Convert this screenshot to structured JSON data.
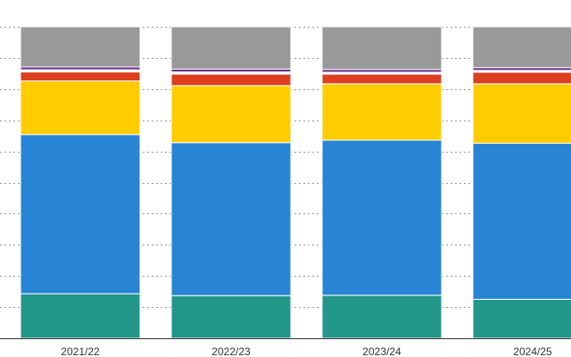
{
  "chart_data": {
    "type": "bar",
    "stacked": true,
    "normalized": true,
    "title": "",
    "xlabel": "",
    "ylabel": "",
    "ylim": [
      0,
      100
    ],
    "grid": true,
    "categories": [
      "2021/22",
      "2022/23",
      "2023/24",
      "2024/25"
    ],
    "series": [
      {
        "name": "teal",
        "color": "#23968a",
        "values": [
          14.3,
          13.7,
          13.8,
          12.5
        ]
      },
      {
        "name": "blue",
        "color": "#2884d4",
        "values": [
          51.1,
          49.1,
          49.8,
          50.1
        ]
      },
      {
        "name": "yellow",
        "color": "#ffcc00",
        "values": [
          17.2,
          18.3,
          18.1,
          19.1
        ]
      },
      {
        "name": "red",
        "color": "#dc3f1f",
        "values": [
          2.9,
          3.7,
          3.1,
          3.7
        ]
      },
      {
        "name": "white",
        "color": "#ffffff",
        "values": [
          0.7,
          0.7,
          0.6,
          0.6
        ]
      },
      {
        "name": "purple",
        "color": "#6a2f8c",
        "values": [
          0.9,
          0.9,
          0.9,
          0.9
        ]
      },
      {
        "name": "grey",
        "color": "#999999",
        "values": [
          12.9,
          13.6,
          13.7,
          13.1
        ]
      }
    ]
  }
}
